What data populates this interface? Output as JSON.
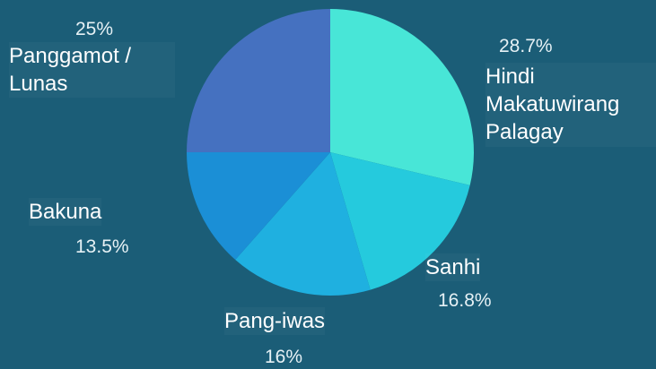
{
  "chart_data": {
    "type": "pie",
    "categories": [
      "Hindi Makatuwirang Palagay",
      "Sanhi",
      "Pang-iwas",
      "Bakuna",
      "Panggamot / Lunas"
    ],
    "values": [
      28.7,
      16.8,
      16,
      13.5,
      25
    ],
    "value_labels": [
      "28.7%",
      "16.8%",
      "16%",
      "13.5%",
      "25%"
    ],
    "colors": [
      "#48e6d7",
      "#25cadd",
      "#1fb0e0",
      "#1b8fd6",
      "#4571c0"
    ]
  }
}
